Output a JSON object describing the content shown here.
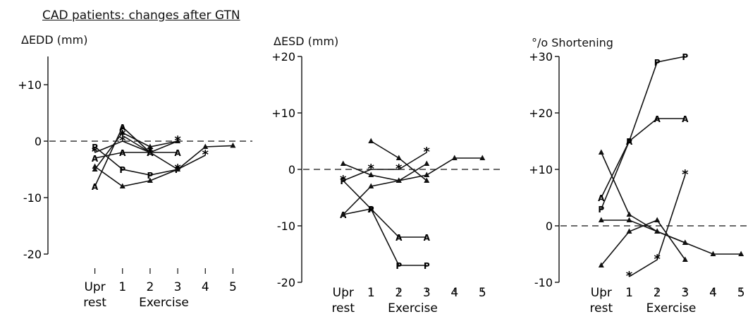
{
  "figure_title": "CAD patients: changes after GTN",
  "chart_data": [
    {
      "type": "line",
      "ylabel": "ΔEDD (mm)",
      "ylim": [
        -20,
        15
      ],
      "yticks": [
        {
          "v": 10,
          "label": "+10"
        },
        {
          "v": 0,
          "label": "0"
        },
        {
          "v": -10,
          "label": "-10"
        },
        {
          "v": -20,
          "label": "-20"
        }
      ],
      "xlim": [
        -0.5,
        5.5
      ],
      "xticks": [
        {
          "v": 0,
          "label": "Upr"
        },
        {
          "v": 1,
          "label": "1"
        },
        {
          "v": 2,
          "label": "2"
        },
        {
          "v": 3,
          "label": "3"
        },
        {
          "v": 4,
          "label": "4"
        },
        {
          "v": 5,
          "label": "5"
        }
      ],
      "xsub": [
        {
          "v": 0,
          "label": "rest"
        },
        {
          "v": 2.5,
          "label": "Exercise"
        }
      ],
      "reference_line": 0,
      "series": [
        {
          "marker": "A",
          "x": [
            0,
            1,
            2
          ],
          "y": [
            -8,
            2.5,
            -2
          ]
        },
        {
          "marker": "P",
          "x": [
            0,
            1,
            2,
            3
          ],
          "y": [
            -1,
            -5,
            -6,
            -5
          ]
        },
        {
          "marker": "triangle",
          "x": [
            0,
            1,
            2,
            3,
            4,
            5
          ],
          "y": [
            -4.5,
            -8,
            -7,
            -5,
            -1,
            -0.8
          ]
        },
        {
          "marker": "triangle",
          "x": [
            0,
            1,
            2,
            3
          ],
          "y": [
            -5,
            1.5,
            -1,
            0
          ]
        },
        {
          "marker": "A",
          "x": [
            0,
            1,
            2,
            3
          ],
          "y": [
            -3,
            -2,
            -2,
            -2
          ]
        },
        {
          "marker": "star",
          "x": [
            0,
            1,
            2,
            3,
            4
          ],
          "y": [
            -2,
            0,
            -2,
            -5,
            -2.5
          ]
        },
        {
          "marker": "star",
          "x": [
            1,
            2,
            3
          ],
          "y": [
            1,
            -2,
            0
          ]
        }
      ]
    },
    {
      "type": "line",
      "ylabel": "ΔESD (mm)",
      "ylim": [
        -20,
        20
      ],
      "yticks": [
        {
          "v": 20,
          "label": "+20"
        },
        {
          "v": 10,
          "label": "+10"
        },
        {
          "v": 0,
          "label": "0"
        },
        {
          "v": -10,
          "label": "-10"
        },
        {
          "v": -20,
          "label": "-20"
        }
      ],
      "xlim": [
        -0.5,
        5.5
      ],
      "xticks": [
        {
          "v": 0,
          "label": "Upr"
        },
        {
          "v": 1,
          "label": "1"
        },
        {
          "v": 2,
          "label": "2"
        },
        {
          "v": 3,
          "label": "3"
        },
        {
          "v": 4,
          "label": "4"
        },
        {
          "v": 5,
          "label": "5"
        }
      ],
      "xsub": [
        {
          "v": 0,
          "label": "rest"
        },
        {
          "v": 2.5,
          "label": "Exercise"
        }
      ],
      "reference_line": 0,
      "series": [
        {
          "marker": "A",
          "x": [
            0,
            1,
            2,
            3
          ],
          "y": [
            -8,
            -7,
            -12,
            -12
          ]
        },
        {
          "marker": "P",
          "x": [
            0,
            1,
            2,
            3
          ],
          "y": [
            -2,
            -7,
            -17,
            -17
          ]
        },
        {
          "marker": "triangle",
          "x": [
            0,
            1,
            2,
            3
          ],
          "y": [
            1,
            -1,
            -2,
            1
          ]
        },
        {
          "marker": "triangle",
          "x": [
            0,
            1,
            2,
            3,
            4,
            5
          ],
          "y": [
            -8,
            -3,
            -2,
            -1,
            2,
            2
          ]
        },
        {
          "marker": "triangle",
          "x": [
            1,
            2,
            3
          ],
          "y": [
            5,
            2,
            -2
          ]
        },
        {
          "marker": "star",
          "x": [
            0,
            1,
            2,
            3
          ],
          "y": [
            -2,
            0,
            0,
            3
          ]
        }
      ]
    },
    {
      "type": "line",
      "ylabel": "°/o Shortening",
      "ylim": [
        -10,
        30
      ],
      "yticks": [
        {
          "v": 30,
          "label": "+30"
        },
        {
          "v": 20,
          "label": "+20"
        },
        {
          "v": 10,
          "label": "+10"
        },
        {
          "v": 0,
          "label": "0"
        },
        {
          "v": -10,
          "label": "-10"
        }
      ],
      "xlim": [
        -0.5,
        5.5
      ],
      "xticks": [
        {
          "v": 0,
          "label": "Upr"
        },
        {
          "v": 1,
          "label": "1"
        },
        {
          "v": 2,
          "label": "2"
        },
        {
          "v": 3,
          "label": "3"
        },
        {
          "v": 4,
          "label": "4"
        },
        {
          "v": 5,
          "label": "5"
        }
      ],
      "xsub": [
        {
          "v": 0,
          "label": "rest"
        },
        {
          "v": 2.5,
          "label": "Exercise"
        }
      ],
      "reference_line": 0,
      "series": [
        {
          "marker": "P",
          "x": [
            0,
            1,
            2,
            3
          ],
          "y": [
            3,
            15,
            29,
            30
          ]
        },
        {
          "marker": "A",
          "x": [
            0,
            1,
            2,
            3
          ],
          "y": [
            5,
            15,
            19,
            19
          ]
        },
        {
          "marker": "triangle",
          "x": [
            0,
            1,
            2,
            3
          ],
          "y": [
            13,
            2,
            -1,
            -3
          ]
        },
        {
          "marker": "triangle",
          "x": [
            0,
            1,
            2,
            3,
            4,
            5
          ],
          "y": [
            1,
            1,
            -1,
            -3,
            -5,
            -5
          ]
        },
        {
          "marker": "triangle",
          "x": [
            0,
            1,
            2,
            3
          ],
          "y": [
            -7,
            -1,
            1,
            -6
          ]
        },
        {
          "marker": "star",
          "x": [
            1,
            2,
            3
          ],
          "y": [
            -9,
            -6,
            9
          ]
        }
      ]
    }
  ]
}
